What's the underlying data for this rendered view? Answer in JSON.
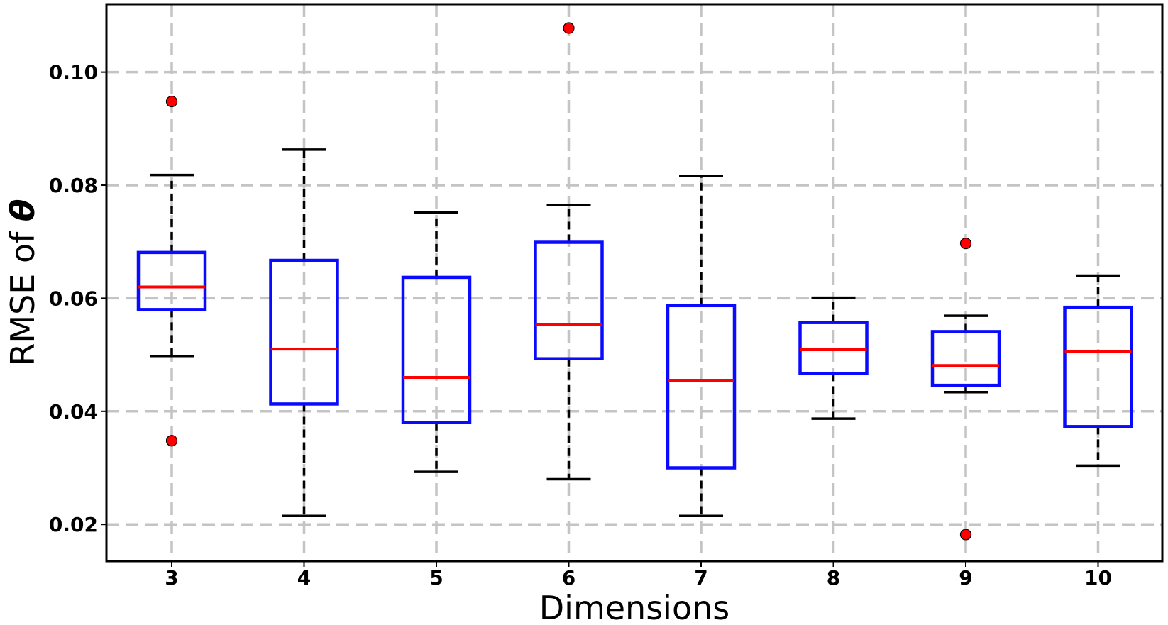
{
  "chart_data": {
    "type": "box",
    "xlabel": "Dimensions",
    "ylabel": "RMSE of",
    "ylabel_symbol": "θ",
    "ylim": [
      0.0135,
      0.112
    ],
    "yticks": [
      0.02,
      0.04,
      0.06,
      0.08,
      0.1
    ],
    "ytick_labels": [
      "0.02",
      "0.04",
      "0.06",
      "0.08",
      "0.10"
    ],
    "grid": true,
    "colors": {
      "box": "#0a0aff",
      "median": "#ff0000",
      "whisker": "#000000",
      "flier": "#ff0000",
      "grid": "#c4c4c4"
    },
    "categories": [
      "3",
      "4",
      "5",
      "6",
      "7",
      "8",
      "9",
      "10"
    ],
    "boxes": [
      {
        "label": "3",
        "whisker_low": 0.0498,
        "q1": 0.058,
        "median": 0.062,
        "q3": 0.0681,
        "whisker_high": 0.0818,
        "fliers": [
          0.0948,
          0.0348
        ]
      },
      {
        "label": "4",
        "whisker_low": 0.0215,
        "q1": 0.0413,
        "median": 0.051,
        "q3": 0.0667,
        "whisker_high": 0.0863,
        "fliers": []
      },
      {
        "label": "5",
        "whisker_low": 0.0293,
        "q1": 0.038,
        "median": 0.046,
        "q3": 0.0637,
        "whisker_high": 0.0752,
        "fliers": []
      },
      {
        "label": "6",
        "whisker_low": 0.028,
        "q1": 0.0493,
        "median": 0.0553,
        "q3": 0.0699,
        "whisker_high": 0.0765,
        "fliers": [
          0.1078
        ]
      },
      {
        "label": "7",
        "whisker_low": 0.0215,
        "q1": 0.03,
        "median": 0.0455,
        "q3": 0.0587,
        "whisker_high": 0.0816,
        "fliers": []
      },
      {
        "label": "8",
        "whisker_low": 0.0387,
        "q1": 0.0467,
        "median": 0.0509,
        "q3": 0.0557,
        "whisker_high": 0.0601,
        "fliers": []
      },
      {
        "label": "9",
        "whisker_low": 0.0434,
        "q1": 0.0446,
        "median": 0.0481,
        "q3": 0.0541,
        "whisker_high": 0.0569,
        "fliers": [
          0.0697,
          0.0182
        ]
      },
      {
        "label": "10",
        "whisker_low": 0.0304,
        "q1": 0.0373,
        "median": 0.0506,
        "q3": 0.0584,
        "whisker_high": 0.064,
        "fliers": []
      }
    ]
  }
}
